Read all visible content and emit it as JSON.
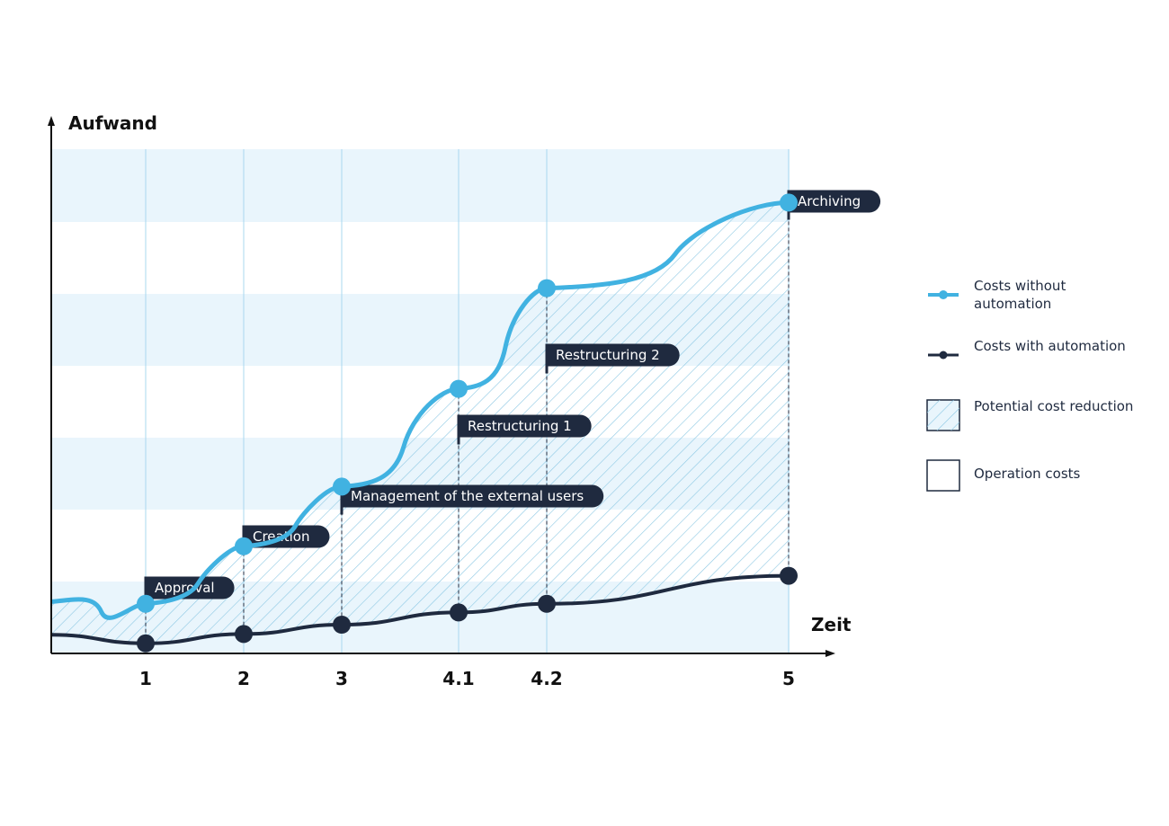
{
  "chart_data": {
    "type": "line",
    "xlabel": "Zeit",
    "ylabel": "Aufwand",
    "x_categories": [
      "1",
      "2",
      "3",
      "4.1",
      "4.2",
      "5"
    ],
    "series": [
      {
        "name": "Costs without automation",
        "color": "#41b2e1",
        "values": [
          0.69,
          1.49,
          2.32,
          3.68,
          5.08,
          6.27
        ]
      },
      {
        "name": "Costs with automation",
        "color": "#1f2a3f",
        "values": [
          0.14,
          0.27,
          0.4,
          0.57,
          0.69,
          1.08
        ]
      }
    ],
    "phases": [
      {
        "label": "Approval",
        "at": "1"
      },
      {
        "label": "Creation",
        "at": "2"
      },
      {
        "label": "Management of the external users",
        "at": "3"
      },
      {
        "label": "Restructuring 1",
        "at": "4.1"
      },
      {
        "label": "Restructuring 2",
        "at": "4.2"
      },
      {
        "label": "Archiving",
        "at": "5"
      }
    ],
    "legend": {
      "placement": "right",
      "items": [
        {
          "label": "Costs without automation",
          "kind": "line-light"
        },
        {
          "label": "Costs with automation",
          "kind": "line-dark"
        },
        {
          "label": "Potential cost reduction",
          "kind": "hatch"
        },
        {
          "label": "Operation costs",
          "kind": "box"
        }
      ]
    },
    "colors": {
      "band": "#e9f5fc",
      "gridline": "#a9d8ef",
      "hatch": "#8cc8e3",
      "axis": "#111111",
      "label_bg": "#1f2a3f"
    },
    "ylim": [
      0,
      7
    ]
  }
}
